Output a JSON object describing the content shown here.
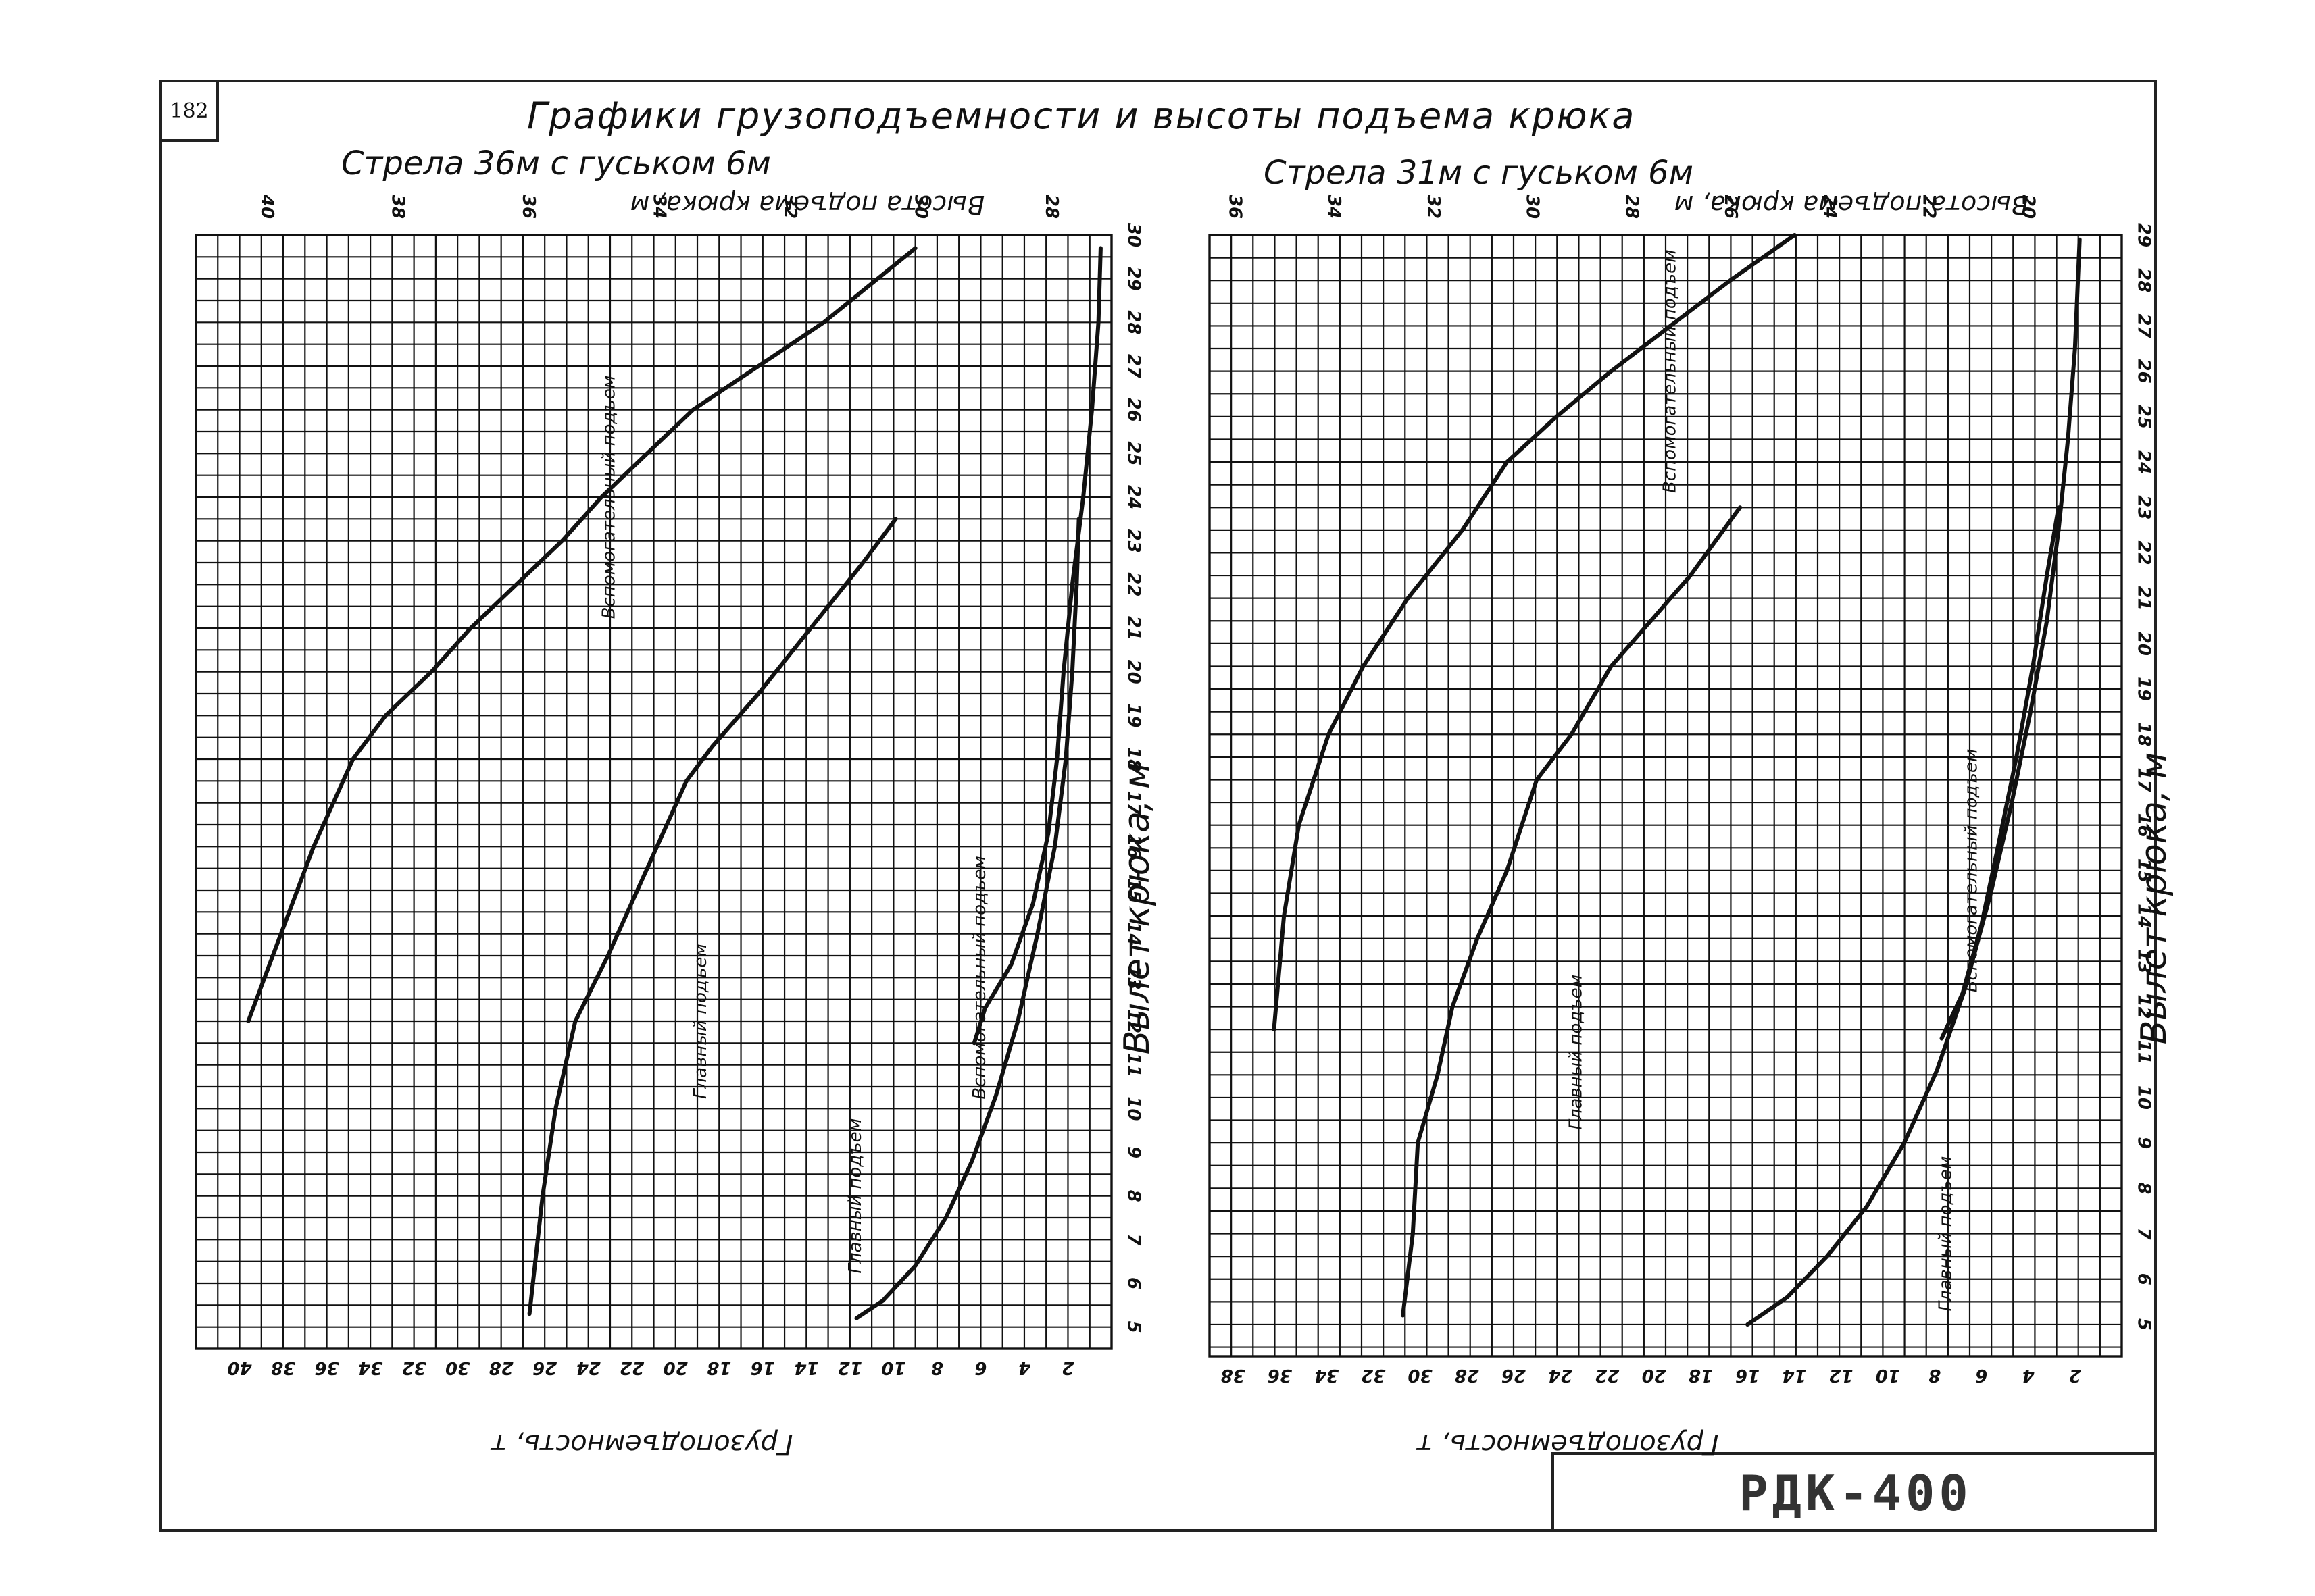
{
  "page_number": "182",
  "main_title": "Графики грузоподъемности и высоты подъема крюка",
  "stamp": "РДК-400",
  "chart_data": [
    {
      "type": "line",
      "title": "Стрела 36м с гуськом 6м",
      "xlabel": "Грузоподъемность, т",
      "x2label": "Высота подъема крюка, м",
      "ylabel": "Вылет крюка, м",
      "xlim": [
        42,
        0
      ],
      "x2lim": [
        41,
        27
      ],
      "ylim": [
        4.5,
        30
      ],
      "x_ticks": [
        40,
        38,
        36,
        34,
        32,
        30,
        28,
        26,
        24,
        22,
        20,
        18,
        16,
        14,
        12,
        10,
        8,
        6,
        4,
        2
      ],
      "x2_ticks": [
        40,
        38,
        36,
        34,
        32,
        30,
        28
      ],
      "y_ticks": [
        5,
        6,
        7,
        8,
        9,
        10,
        11,
        12,
        13,
        14,
        15,
        16,
        17,
        18,
        19,
        20,
        21,
        22,
        23,
        24,
        25,
        26,
        27,
        28,
        29,
        30
      ],
      "series": [
        {
          "name": "Вспомогательный подъем",
          "axis": "x2",
          "label_at": [
            34.6,
            24
          ],
          "points": [
            [
              40.2,
              12
            ],
            [
              39.7,
              14
            ],
            [
              39.2,
              16
            ],
            [
              38.6,
              18
            ],
            [
              38.1,
              19
            ],
            [
              37.4,
              20
            ],
            [
              36.8,
              21
            ],
            [
              36.1,
              22
            ],
            [
              35.4,
              23
            ],
            [
              34.8,
              24
            ],
            [
              34.1,
              25
            ],
            [
              33.4,
              26
            ],
            [
              32.4,
              27
            ],
            [
              31.4,
              28
            ],
            [
              30.0,
              29.7
            ]
          ]
        },
        {
          "name": "Главный подъем",
          "axis": "x2",
          "label_at": [
            33.2,
            12
          ],
          "points": [
            [
              35.9,
              5.3
            ],
            [
              35.7,
              8
            ],
            [
              35.5,
              10
            ],
            [
              35.2,
              12
            ],
            [
              34.7,
              13.5
            ],
            [
              34.1,
              15.5
            ],
            [
              33.5,
              17.5
            ],
            [
              33.1,
              18.3
            ],
            [
              32.4,
              19.5
            ],
            [
              31.6,
              21
            ],
            [
              30.8,
              22.5
            ],
            [
              30.3,
              23.5
            ]
          ]
        },
        {
          "name": "Главный подъем",
          "axis": "x",
          "label_at": [
            11.5,
            8
          ],
          "points": [
            [
              11.7,
              5.2
            ],
            [
              10.5,
              5.6
            ],
            [
              9.0,
              6.4
            ],
            [
              7.6,
              7.5
            ],
            [
              6.4,
              8.8
            ],
            [
              5.3,
              10.3
            ],
            [
              4.3,
              12
            ],
            [
              3.4,
              14
            ],
            [
              2.6,
              16
            ],
            [
              2.1,
              18
            ],
            [
              1.8,
              20
            ],
            [
              1.6,
              22
            ],
            [
              1.5,
              23.5
            ]
          ]
        },
        {
          "name": "Вспомогательный подъем",
          "axis": "x",
          "label_at": [
            5.8,
            13
          ],
          "points": [
            [
              6.3,
              11.5
            ],
            [
              5.8,
              12.3
            ],
            [
              4.6,
              13.3
            ],
            [
              3.6,
              14.7
            ],
            [
              2.9,
              16.3
            ],
            [
              2.5,
              18
            ],
            [
              2.2,
              20
            ],
            [
              1.8,
              22
            ],
            [
              1.3,
              24
            ],
            [
              0.9,
              26
            ],
            [
              0.6,
              28
            ],
            [
              0.5,
              29.7
            ]
          ]
        }
      ]
    },
    {
      "type": "line",
      "title": "Стрела 31м с гуськом 6м",
      "xlabel": "Грузоподъемность, т",
      "x2label": "Высота подъема крюка, м",
      "ylabel": "Вылет крюка, м",
      "xlim": [
        39,
        0
      ],
      "x2lim": [
        36.4,
        18
      ],
      "ylim": [
        4.3,
        29
      ],
      "x_ticks": [
        38,
        36,
        34,
        32,
        30,
        28,
        26,
        24,
        22,
        20,
        18,
        16,
        14,
        12,
        10,
        8,
        6,
        4,
        2
      ],
      "x2_ticks": [
        36,
        34,
        32,
        30,
        28,
        26,
        24,
        22,
        20
      ],
      "y_ticks": [
        5,
        6,
        7,
        8,
        9,
        10,
        11,
        12,
        13,
        14,
        15,
        16,
        17,
        18,
        19,
        20,
        21,
        22,
        23,
        24,
        25,
        26,
        27,
        28,
        29
      ],
      "series": [
        {
          "name": "Вспомогательный подъем",
          "axis": "x2",
          "label_at": [
            27.0,
            26
          ],
          "points": [
            [
              35.1,
              11.5
            ],
            [
              34.9,
              14
            ],
            [
              34.6,
              16
            ],
            [
              34.0,
              18
            ],
            [
              33.3,
              19.5
            ],
            [
              32.4,
              21
            ],
            [
              31.3,
              22.5
            ],
            [
              30.4,
              24
            ],
            [
              29.4,
              25
            ],
            [
              28.3,
              26
            ],
            [
              27.1,
              27
            ],
            [
              25.9,
              28
            ],
            [
              24.6,
              29
            ]
          ]
        },
        {
          "name": "Главный подъем",
          "axis": "x2",
          "label_at": [
            28.9,
            11
          ],
          "points": [
            [
              32.5,
              5.2
            ],
            [
              32.3,
              7
            ],
            [
              32.2,
              9
            ],
            [
              31.8,
              10.5
            ],
            [
              31.5,
              12
            ],
            [
              31.0,
              13.5
            ],
            [
              30.4,
              15
            ],
            [
              29.8,
              17
            ],
            [
              29.1,
              18
            ],
            [
              28.3,
              19.5
            ],
            [
              27.5,
              20.5
            ],
            [
              26.7,
              21.5
            ],
            [
              25.7,
              23
            ]
          ]
        },
        {
          "name": "Вспомогательный подъем",
          "axis": "x",
          "label_at": [
            6.2,
            15
          ],
          "points": [
            [
              7.7,
              11.3
            ],
            [
              6.8,
              12.3
            ],
            [
              6.0,
              13.8
            ],
            [
              5.3,
              15.5
            ],
            [
              4.5,
              17.5
            ],
            [
              3.8,
              19.5
            ],
            [
              3.2,
              21.5
            ],
            [
              2.7,
              23
            ]
          ]
        },
        {
          "name": "Главный подъем",
          "axis": "x",
          "label_at": [
            7.3,
            7
          ],
          "points": [
            [
              16.0,
              5.0
            ],
            [
              14.3,
              5.6
            ],
            [
              12.6,
              6.5
            ],
            [
              10.9,
              7.6
            ],
            [
              9.3,
              9
            ],
            [
              7.9,
              10.6
            ],
            [
              6.7,
              12.4
            ],
            [
              5.6,
              14.5
            ],
            [
              4.7,
              16.5
            ],
            [
              3.9,
              18.5
            ],
            [
              3.2,
              20.5
            ],
            [
              2.7,
              22.5
            ],
            [
              2.3,
              24.5
            ],
            [
              2.0,
              26.5
            ],
            [
              1.8,
              28.9
            ]
          ]
        }
      ]
    }
  ]
}
